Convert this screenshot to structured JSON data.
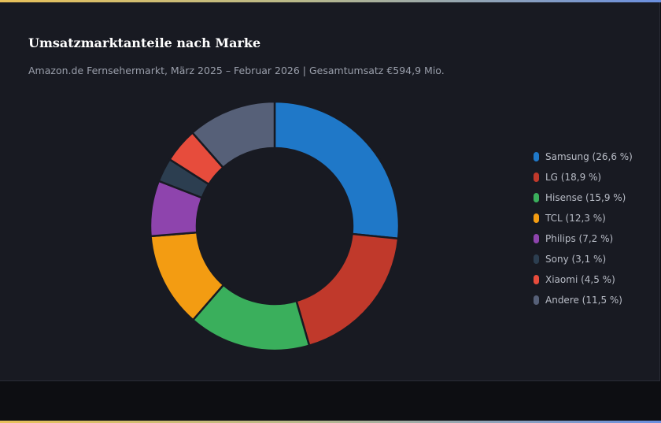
{
  "title": "Umsatzmarktanteile nach Marke",
  "subtitle": "Amazon.de Fernsehermarkt, März 2025 – Februar 2026 | Gesamtumsatz €594,9 Mio.",
  "chart_data": {
    "type": "pie",
    "variant": "donut",
    "title": "Umsatzmarktanteile nach Marke",
    "unit": "%",
    "legend_position": "right",
    "slices": [
      {
        "name": "Samsung",
        "value": 26.6,
        "label": "Samsung (26,6 %)",
        "color": "#1f78c8"
      },
      {
        "name": "LG",
        "value": 18.9,
        "label": "LG (18,9 %)",
        "color": "#c0392b"
      },
      {
        "name": "Hisense",
        "value": 15.9,
        "label": "Hisense (15,9 %)",
        "color": "#3aaf5c"
      },
      {
        "name": "TCL",
        "value": 12.3,
        "label": "TCL (12,3 %)",
        "color": "#f39c12"
      },
      {
        "name": "Philips",
        "value": 7.2,
        "label": "Philips (7,2 %)",
        "color": "#8e44ad"
      },
      {
        "name": "Sony",
        "value": 3.1,
        "label": "Sony (3,1 %)",
        "color": "#2c3e50"
      },
      {
        "name": "Xiaomi",
        "value": 4.5,
        "label": "Xiaomi (4,5 %)",
        "color": "#e74c3c"
      },
      {
        "name": "Andere",
        "value": 11.5,
        "label": "Andere (11,5 %)",
        "color": "#566078"
      }
    ]
  }
}
